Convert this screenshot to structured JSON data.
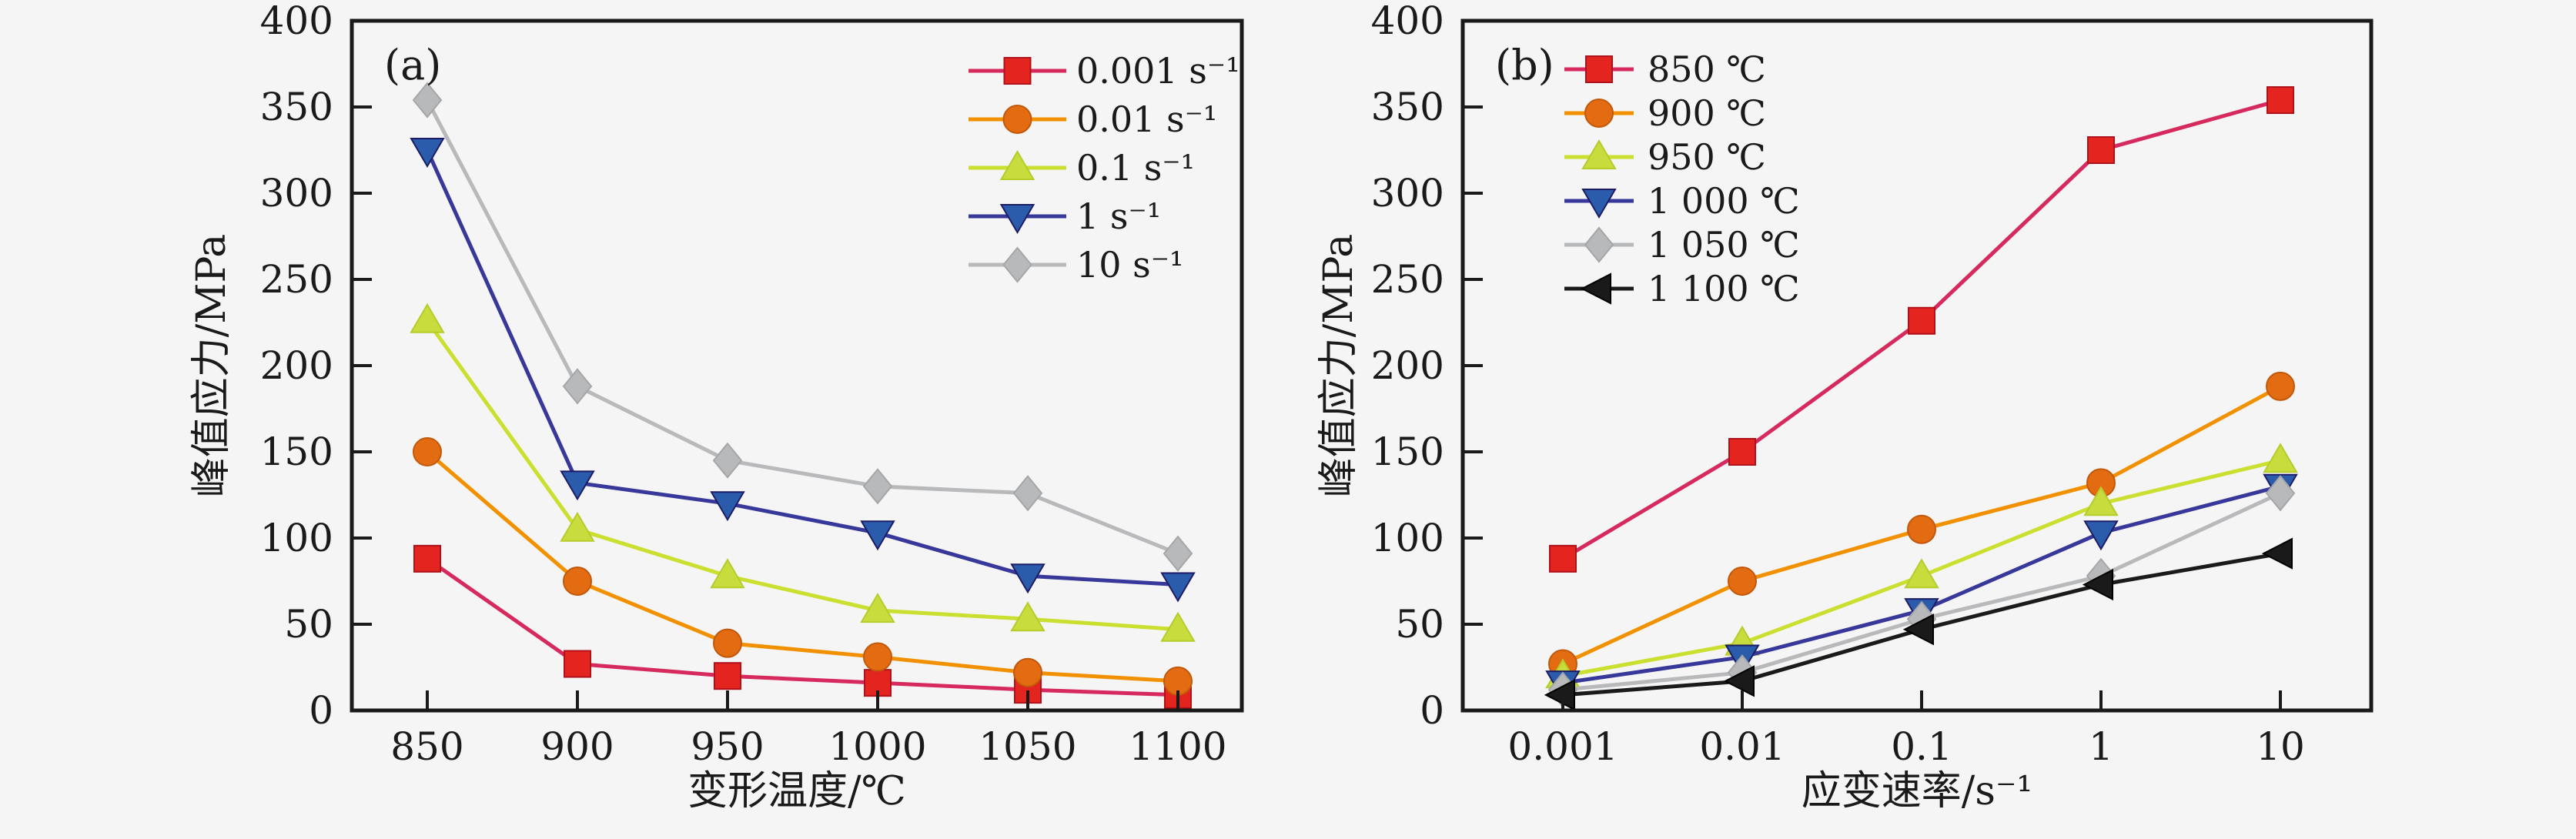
{
  "figure": {
    "background": "#f5f5f6",
    "axis_color": "#1a1a1a",
    "text_color": "#1a1a1a"
  },
  "chart_data": [
    {
      "type": "line",
      "panel_label": "(a)",
      "xlabel": "变形温度/℃",
      "ylabel": "峰值应力/MPa",
      "x_scale": "linear",
      "x": [
        850,
        900,
        950,
        1000,
        1050,
        1100
      ],
      "xtick_labels": [
        "850",
        "900",
        "950",
        "1000",
        "1050",
        "1100"
      ],
      "ylim": [
        0,
        400
      ],
      "ytick_step": 50,
      "grid": false,
      "legend_position": "top-right",
      "series": [
        {
          "name": "0.001 s⁻¹",
          "marker": "square",
          "line_color": "#d62a5e",
          "marker_color": "#e3241f",
          "marker_edge": "#b0121c",
          "values": [
            88,
            27,
            20,
            16,
            12,
            9
          ]
        },
        {
          "name": "0.01 s⁻¹",
          "marker": "circle",
          "line_color": "#f29100",
          "marker_color": "#e36c12",
          "marker_edge": "#c2580a",
          "values": [
            150,
            75,
            39,
            31,
            22,
            17
          ]
        },
        {
          "name": "0.1 s⁻¹",
          "marker": "triangle-up",
          "line_color": "#cbdf30",
          "marker_color": "#c8dd3d",
          "marker_edge": "#b5cc2a",
          "values": [
            226,
            105,
            78,
            58,
            53,
            47
          ]
        },
        {
          "name": "1 s⁻¹",
          "marker": "triangle-down",
          "line_color": "#38389a",
          "marker_color": "#2b5cab",
          "marker_edge": "#1c1c66",
          "values": [
            325,
            132,
            120,
            103,
            78,
            73
          ]
        },
        {
          "name": "10 s⁻¹",
          "marker": "diamond",
          "line_color": "#b8b9bb",
          "marker_color": "#b8b9bb",
          "marker_edge": "#a5a6a8",
          "values": [
            354,
            188,
            145,
            130,
            126,
            91
          ]
        }
      ]
    },
    {
      "type": "line",
      "panel_label": "(b)",
      "xlabel": "应变速率/s⁻¹",
      "ylabel": "峰值应力/MPa",
      "x_scale": "log",
      "x": [
        0.001,
        0.01,
        0.1,
        1,
        10
      ],
      "xtick_labels": [
        "0.001",
        "0.01",
        "0.1",
        "1",
        "10"
      ],
      "ylim": [
        0,
        400
      ],
      "ytick_step": 50,
      "grid": false,
      "legend_position": "top-left",
      "series": [
        {
          "name": "850 ℃",
          "marker": "square",
          "line_color": "#d62a5e",
          "marker_color": "#e3241f",
          "marker_edge": "#b0121c",
          "values": [
            88,
            150,
            226,
            325,
            354
          ]
        },
        {
          "name": "900 ℃",
          "marker": "circle",
          "line_color": "#f29100",
          "marker_color": "#e36c12",
          "marker_edge": "#c2580a",
          "values": [
            27,
            75,
            105,
            132,
            188
          ]
        },
        {
          "name": "950 ℃",
          "marker": "triangle-up",
          "line_color": "#cbdf30",
          "marker_color": "#c8dd3d",
          "marker_edge": "#b5cc2a",
          "values": [
            20,
            39,
            78,
            120,
            145
          ]
        },
        {
          "name": "1 000 ℃",
          "marker": "triangle-down",
          "line_color": "#38389a",
          "marker_color": "#2b5cab",
          "marker_edge": "#1c1c66",
          "values": [
            16,
            31,
            58,
            103,
            130
          ]
        },
        {
          "name": "1 050 ℃",
          "marker": "diamond",
          "line_color": "#b8b9bb",
          "marker_color": "#b8b9bb",
          "marker_edge": "#a5a6a8",
          "values": [
            12,
            22,
            53,
            78,
            126
          ]
        },
        {
          "name": "1 100 ℃",
          "marker": "triangle-left",
          "line_color": "#1a1a1a",
          "marker_color": "#1a1a1a",
          "marker_edge": "#000000",
          "values": [
            9,
            17,
            47,
            73,
            91
          ]
        }
      ]
    }
  ]
}
